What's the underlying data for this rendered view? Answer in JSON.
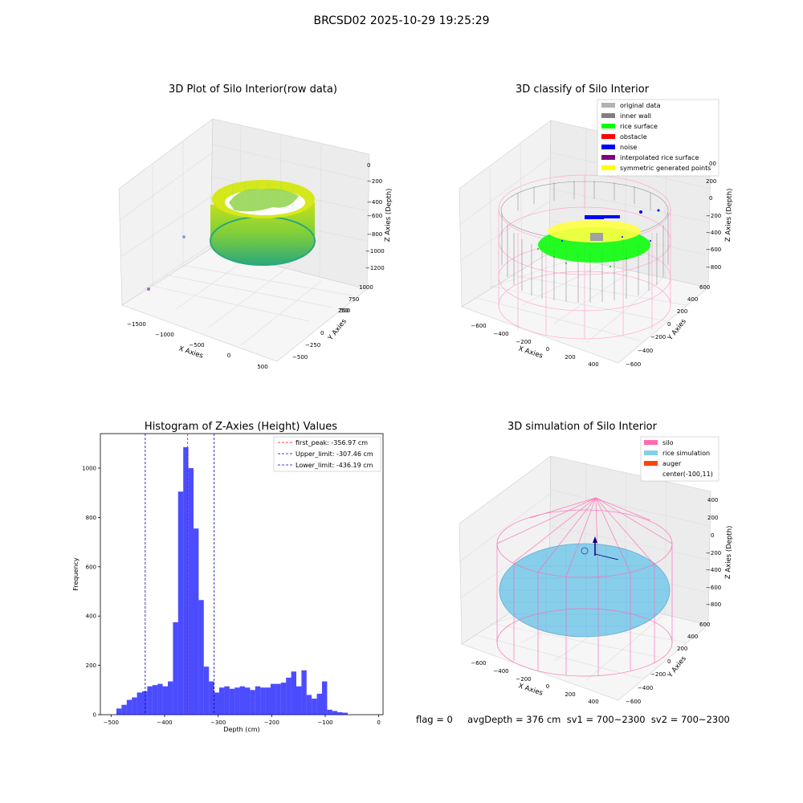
{
  "figure": {
    "title": "BRCSD02 2025-10-29 19:25:29",
    "footer": "flag = 0     avgDepth = 376 cm  sv1 = 700~2300  sv2 = 700~2300"
  },
  "panels": {
    "raw": {
      "title": "3D Plot of Silo Interior(row data)",
      "x_ticks": [
        "−1500",
        "−1000",
        "−500",
        "0",
        "500"
      ],
      "y_ticks": [
        "−500",
        "−250",
        "0",
        "250",
        "500",
        "750",
        "1000"
      ],
      "z_ticks": [
        "0",
        "−200",
        "−400",
        "−600",
        "−800",
        "−1000",
        "−1200"
      ],
      "xlabel": "X Axies",
      "ylabel": "Y Axies",
      "zlabel": "Z Axies (Depth)"
    },
    "classify": {
      "title": "3D classify of Silo Interior",
      "x_ticks": [
        "−600",
        "−400",
        "−200",
        "0",
        "200",
        "400"
      ],
      "y_ticks": [
        "−600",
        "−400",
        "−200",
        "0",
        "200",
        "400",
        "600"
      ],
      "z_ticks": [
        "200",
        "0",
        "−200",
        "−400",
        "−600",
        "−800"
      ],
      "z_top_partial": "00",
      "xlabel": "X Axies",
      "ylabel": "Y Axies",
      "zlabel": "Z Axies (Depth)",
      "legend": [
        {
          "label": "original data",
          "color": "#b3b3b3"
        },
        {
          "label": "inner wall",
          "color": "#808080"
        },
        {
          "label": "rice surface",
          "color": "#00ff00"
        },
        {
          "label": "obstacle",
          "color": "#ff0000"
        },
        {
          "label": "noise",
          "color": "#0000ff"
        },
        {
          "label": "interpolated rice surface",
          "color": "#800080"
        },
        {
          "label": "symmetric generated points",
          "color": "#ffff00"
        }
      ]
    },
    "histogram": {
      "title": "Histogram of Z-Axies (Height) Values",
      "xlabel": "Depth (cm)",
      "ylabel": "Frequency",
      "legend": [
        {
          "label": "first_peak: -356.97 cm",
          "color": "#ff0000"
        },
        {
          "label": "Upper_limit: -307.46 cm",
          "color": "#0000aa"
        },
        {
          "label": "Lower_limit: -436.19 cm",
          "color": "#0000aa"
        }
      ]
    },
    "simulation": {
      "title": "3D simulation of Silo Interior",
      "x_ticks": [
        "−600",
        "−400",
        "−200",
        "0",
        "200",
        "400"
      ],
      "y_ticks": [
        "−600",
        "−400",
        "−200",
        "0",
        "200",
        "400",
        "600"
      ],
      "z_ticks": [
        "400",
        "200",
        "0",
        "−200",
        "−400",
        "−600",
        "−800"
      ],
      "xlabel": "X Axies",
      "ylabel": "Y Axies",
      "zlabel": "Z Axies (Depth)",
      "legend": [
        {
          "label": "silo",
          "color": "#ff69b4"
        },
        {
          "label": "rice simulation",
          "color": "#87ceeb"
        },
        {
          "label": "auger",
          "color": "#ff4500"
        },
        {
          "label": "center(-100,11)",
          "color": ""
        }
      ]
    }
  },
  "chart_data": {
    "type": "bar",
    "title": "Histogram of Z-Axies (Height) Values",
    "xlabel": "Depth (cm)",
    "ylabel": "Frequency",
    "xlim": [
      -520,
      8
    ],
    "ylim": [
      0,
      1140
    ],
    "xticks": [
      -500,
      -400,
      -300,
      -200,
      -100,
      0
    ],
    "yticks": [
      0,
      200,
      400,
      600,
      800,
      1000
    ],
    "bar_color": "#0000ff",
    "bin_start": -490,
    "bin_width": 9.6,
    "values": [
      25,
      40,
      60,
      70,
      90,
      95,
      115,
      120,
      125,
      115,
      135,
      375,
      905,
      1085,
      1000,
      755,
      465,
      195,
      135,
      90,
      110,
      115,
      105,
      110,
      115,
      110,
      100,
      115,
      110,
      110,
      125,
      125,
      130,
      150,
      175,
      115,
      180,
      80,
      65,
      85,
      135,
      20,
      15,
      10,
      8
    ],
    "vlines": [
      {
        "x": -356.97,
        "label": "first_peak: -356.97 cm",
        "color": "#ff0000"
      },
      {
        "x": -307.46,
        "label": "Upper_limit: -307.46 cm",
        "color": "#0000aa"
      },
      {
        "x": -436.19,
        "label": "Lower_limit: -436.19 cm",
        "color": "#0000aa"
      }
    ],
    "legend_position": "top-right",
    "grid": false
  }
}
